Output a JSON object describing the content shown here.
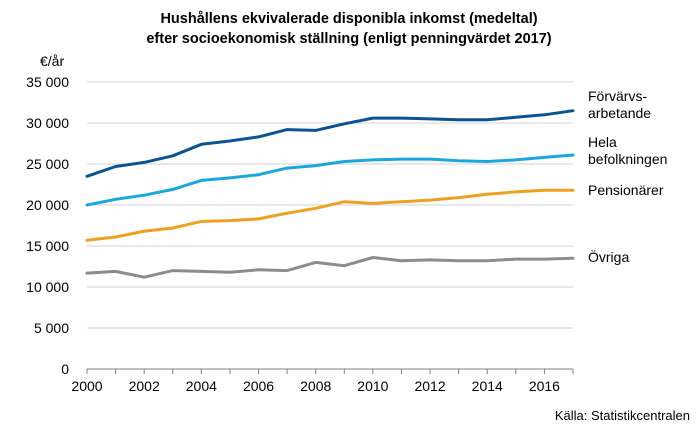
{
  "chart_data": {
    "type": "line",
    "title": [
      "Hushållens ekvivalerade disponibla inkomst (medeltal)",
      "efter socioekonomisk ställning (enligt penningvärdet 2017)"
    ],
    "ylabel": "€/år",
    "ylim": [
      0,
      35000
    ],
    "y_ticks": [
      0,
      5000,
      10000,
      15000,
      20000,
      25000,
      30000,
      35000
    ],
    "y_tick_labels": [
      "0",
      "5 000",
      "10 000",
      "15 000",
      "20 000",
      "25 000",
      "30 000",
      "35 000"
    ],
    "x": [
      2000,
      2001,
      2002,
      2003,
      2004,
      2005,
      2006,
      2007,
      2008,
      2009,
      2010,
      2011,
      2012,
      2013,
      2014,
      2015,
      2016,
      2017
    ],
    "xlim": [
      2000,
      2017
    ],
    "x_ticks": [
      2000,
      2002,
      2004,
      2006,
      2008,
      2010,
      2012,
      2014,
      2016
    ],
    "x_tick_labels": [
      "2000",
      "2002",
      "2004",
      "2006",
      "2008",
      "2010",
      "2012",
      "2014",
      "2016"
    ],
    "grid": "horizontal",
    "legend": "right, labels at line ends",
    "series": [
      {
        "name": "Förvärvs- arbetande",
        "label_lines": [
          "Förvärvs-",
          "arbetande"
        ],
        "color": "#0b5394",
        "values": [
          23500,
          24700,
          25200,
          26000,
          27400,
          27800,
          28300,
          29200,
          29100,
          29900,
          30600,
          30600,
          30500,
          30400,
          30400,
          30700,
          31000,
          31500
        ]
      },
      {
        "name": "Hela befolkningen",
        "label_lines": [
          "Hela",
          "befolkningen"
        ],
        "color": "#1aa7e0",
        "values": [
          20000,
          20700,
          21200,
          21900,
          23000,
          23300,
          23700,
          24500,
          24800,
          25300,
          25500,
          25600,
          25600,
          25400,
          25300,
          25500,
          25800,
          26100
        ]
      },
      {
        "name": "Pensionärer",
        "label_lines": [
          "Pensionärer"
        ],
        "color": "#f0a01e",
        "values": [
          15700,
          16100,
          16800,
          17200,
          18000,
          18100,
          18300,
          19000,
          19600,
          20400,
          20200,
          20400,
          20600,
          20900,
          21300,
          21600,
          21800,
          21800
        ]
      },
      {
        "name": "Övriga",
        "label_lines": [
          "Övriga"
        ],
        "color": "#8c8c8c",
        "values": [
          11700,
          11900,
          11200,
          12000,
          11900,
          11800,
          12100,
          12000,
          13000,
          12600,
          13600,
          13200,
          13300,
          13200,
          13200,
          13400,
          13400,
          13500
        ]
      }
    ],
    "source": "Källa: Statistikcentralen"
  }
}
